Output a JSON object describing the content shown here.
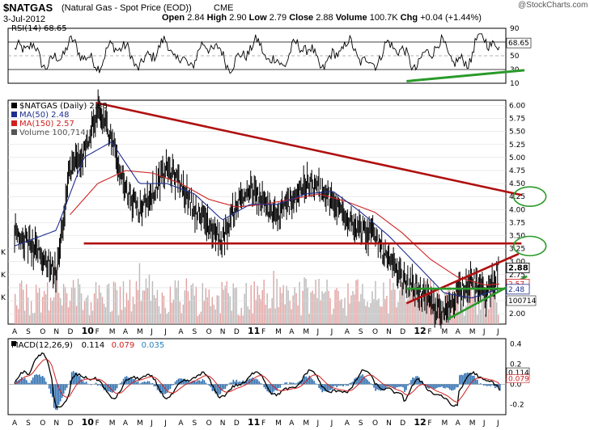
{
  "header": {
    "ticker": "$NATGAS",
    "name": "(Natural Gas - Spot Price (EOD))",
    "exchange": "CME",
    "date": "3-Jul-2012",
    "open_label": "Open",
    "open": "2.84",
    "high_label": "High",
    "high": "2.90",
    "low_label": "Low",
    "low": "2.79",
    "close_label": "Close",
    "close": "2.88",
    "volume_label": "Volume",
    "volume": "100.7K",
    "chg_label": "Chg",
    "chg": "+0.04 (+1.44%)",
    "watermark": "@StockCharts.com"
  },
  "chart_data": [
    {
      "type": "line",
      "panel": "rsi",
      "legend": "RSI(14) 68.65",
      "y_ticks": [
        90,
        70,
        50,
        30,
        10
      ],
      "ylim": [
        10,
        90
      ],
      "last_value": "68.65",
      "colors": {
        "line": "#000000",
        "reference": "#000000"
      },
      "annotation": "green support line under recent lows"
    },
    {
      "type": "line",
      "panel": "price",
      "legend": [
        {
          "text": "$NATGAS (Daily) 2.88",
          "color": "#000000"
        },
        {
          "text": "MA(50) 2.48",
          "color": "#1f2f8f"
        },
        {
          "text": "MA(150) 2.57",
          "color": "#d02020"
        },
        {
          "text": "Volume 100,714",
          "color": "#555555"
        }
      ],
      "y_ticks": [
        "6.00",
        "5.75",
        "5.50",
        "5.25",
        "5.00",
        "4.75",
        "4.50",
        "4.25",
        "4.00",
        "3.75",
        "3.50",
        "3.25",
        "3.00",
        "2.75",
        "2.50",
        "2.25",
        "2.00"
      ],
      "ylim": [
        1.8,
        6.1
      ],
      "last_price": "2.88",
      "ma50_last": "2.48",
      "ma150_last": "2.57",
      "volume_last": "100714",
      "left_k_labels": [
        "K",
        "K",
        "K"
      ],
      "x_labels": [
        "A",
        "S",
        "O",
        "N",
        "D",
        "10",
        "F",
        "M",
        "A",
        "M",
        "J",
        "J",
        "A",
        "S",
        "O",
        "N",
        "D",
        "11",
        "F",
        "M",
        "A",
        "M",
        "J",
        "J",
        "A",
        "S",
        "O",
        "N",
        "D",
        "12",
        "F",
        "M",
        "A",
        "M",
        "J",
        "J"
      ],
      "price_anchors": [
        {
          "x": 0,
          "y": 3.6
        },
        {
          "x": 2,
          "y": 3.1
        },
        {
          "x": 3,
          "y": 2.8
        },
        {
          "x": 4,
          "y": 4.8
        },
        {
          "x": 5,
          "y": 5.05
        },
        {
          "x": 6,
          "y": 5.9
        },
        {
          "x": 7,
          "y": 5.4
        },
        {
          "x": 8,
          "y": 4.4
        },
        {
          "x": 9,
          "y": 4.0
        },
        {
          "x": 10,
          "y": 4.35
        },
        {
          "x": 11,
          "y": 4.8
        },
        {
          "x": 12,
          "y": 4.5
        },
        {
          "x": 13,
          "y": 4.0
        },
        {
          "x": 14,
          "y": 3.7
        },
        {
          "x": 15,
          "y": 3.4
        },
        {
          "x": 16,
          "y": 4.1
        },
        {
          "x": 17,
          "y": 4.4
        },
        {
          "x": 18,
          "y": 4.1
        },
        {
          "x": 19,
          "y": 3.85
        },
        {
          "x": 20,
          "y": 4.2
        },
        {
          "x": 21,
          "y": 4.5
        },
        {
          "x": 22,
          "y": 4.4
        },
        {
          "x": 23,
          "y": 4.1
        },
        {
          "x": 24,
          "y": 3.9
        },
        {
          "x": 25,
          "y": 3.6
        },
        {
          "x": 26,
          "y": 3.5
        },
        {
          "x": 27,
          "y": 3.0
        },
        {
          "x": 28,
          "y": 2.65
        },
        {
          "x": 29,
          "y": 2.5
        },
        {
          "x": 30,
          "y": 2.2
        },
        {
          "x": 31,
          "y": 1.95
        },
        {
          "x": 32,
          "y": 2.45
        },
        {
          "x": 33,
          "y": 2.65
        },
        {
          "x": 34,
          "y": 2.35
        },
        {
          "x": 35,
          "y": 2.88
        }
      ],
      "ma50_anchors": [
        {
          "x": 0,
          "y": 3.3
        },
        {
          "x": 3,
          "y": 3.6
        },
        {
          "x": 5,
          "y": 5.0
        },
        {
          "x": 7,
          "y": 5.3
        },
        {
          "x": 9,
          "y": 4.5
        },
        {
          "x": 11,
          "y": 4.5
        },
        {
          "x": 13,
          "y": 4.3
        },
        {
          "x": 15,
          "y": 3.8
        },
        {
          "x": 17,
          "y": 4.1
        },
        {
          "x": 19,
          "y": 4.1
        },
        {
          "x": 21,
          "y": 4.3
        },
        {
          "x": 23,
          "y": 4.35
        },
        {
          "x": 25,
          "y": 3.95
        },
        {
          "x": 27,
          "y": 3.5
        },
        {
          "x": 29,
          "y": 2.95
        },
        {
          "x": 31,
          "y": 2.4
        },
        {
          "x": 33,
          "y": 2.3
        },
        {
          "x": 35,
          "y": 2.48
        }
      ],
      "ma150_anchors": [
        {
          "x": 4,
          "y": 3.9
        },
        {
          "x": 6,
          "y": 4.5
        },
        {
          "x": 8,
          "y": 4.75
        },
        {
          "x": 10,
          "y": 4.7
        },
        {
          "x": 12,
          "y": 4.5
        },
        {
          "x": 14,
          "y": 4.2
        },
        {
          "x": 16,
          "y": 4.05
        },
        {
          "x": 18,
          "y": 4.1
        },
        {
          "x": 20,
          "y": 4.2
        },
        {
          "x": 22,
          "y": 4.3
        },
        {
          "x": 24,
          "y": 4.15
        },
        {
          "x": 26,
          "y": 3.95
        },
        {
          "x": 28,
          "y": 3.55
        },
        {
          "x": 30,
          "y": 3.05
        },
        {
          "x": 32,
          "y": 2.7
        },
        {
          "x": 34,
          "y": 2.55
        },
        {
          "x": 35,
          "y": 2.57
        }
      ],
      "trendlines": [
        {
          "color": "#b01010",
          "from": [
            5.9,
            6.05
          ],
          "to": [
            36.6,
            4.28
          ]
        },
        {
          "color": "#b01010",
          "from": [
            5.0,
            3.35
          ],
          "to": [
            36.6,
            3.35
          ]
        },
        {
          "color": "#b01010",
          "from": [
            28.3,
            2.2
          ],
          "to": [
            36.4,
            3.15
          ]
        },
        {
          "color": "#2a9a2a",
          "from": [
            28.3,
            2.48
          ],
          "to": [
            36.6,
            2.48
          ]
        },
        {
          "color": "#2a9a2a",
          "from": [
            31.3,
            1.9
          ],
          "to": [
            37.0,
            2.72
          ]
        }
      ],
      "circles": [
        {
          "color": "#2a9a2a",
          "x": 37.2,
          "y": 4.25
        },
        {
          "color": "#2a9a2a",
          "x": 37.2,
          "y": 3.3
        }
      ]
    },
    {
      "type": "line",
      "panel": "macd",
      "legend": [
        {
          "text": "MACD(12,26,9)",
          "color": "#000000"
        },
        {
          "text": "0.114",
          "color": "#000000"
        },
        {
          "text": "0.079",
          "color": "#d02020"
        },
        {
          "text": "0.035",
          "color": "#2a80c0"
        }
      ],
      "y_ticks": [
        "0.4",
        "0.2",
        "0.0",
        "-0.2"
      ],
      "ylim": [
        -0.3,
        0.45
      ],
      "last_values": [
        "0.114",
        "0.079"
      ],
      "x_labels": [
        "A",
        "S",
        "O",
        "N",
        "D",
        "10",
        "F",
        "M",
        "A",
        "M",
        "J",
        "J",
        "A",
        "S",
        "O",
        "N",
        "D",
        "11",
        "F",
        "M",
        "A",
        "M",
        "J",
        "J",
        "A",
        "S",
        "O",
        "N",
        "D",
        "12",
        "F",
        "M",
        "A",
        "M",
        "J",
        "J"
      ]
    }
  ]
}
